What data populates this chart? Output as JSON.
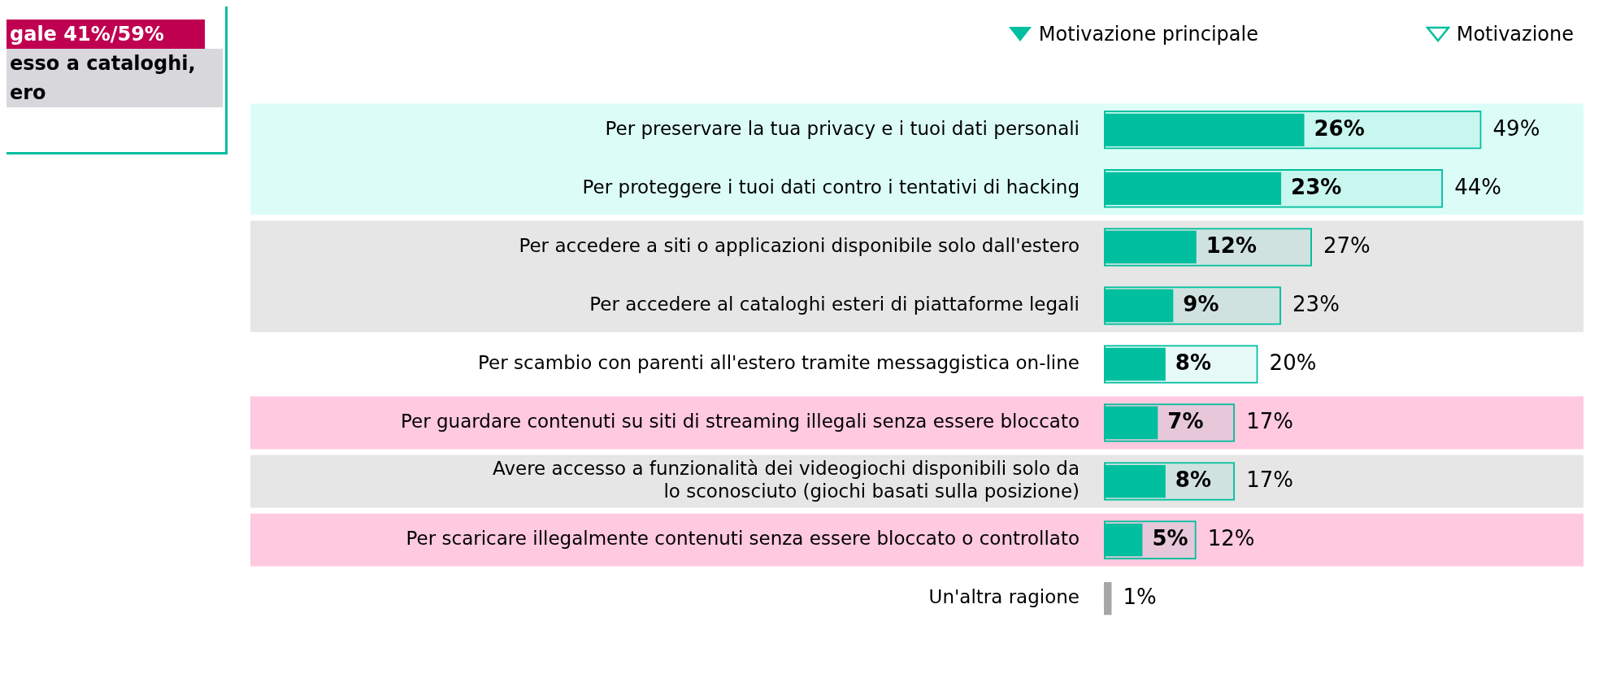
{
  "chart_data": {
    "type": "bar",
    "orientation": "horizontal",
    "legend": "top right",
    "categories": [
      "Per preservare la tua privacy e i tuoi dati personali",
      "Per proteggere i tuoi dati contro i tentativi di hacking",
      "Per accedere a siti o applicazioni disponibile solo dall'estero",
      "Per accedere al cataloghi esteri di piattaforme legali",
      "Per scambio con parenti all'estero tramite messaggistica on-line",
      "Per guardare contenuti su siti di streaming illegali senza essere bloccato",
      "Avere accesso a funzionalità dei videogiochi disponibili solo da\nlo sconosciuto (giochi basati sulla posizione)",
      "Per scaricare illegalmente contenuti senza essere bloccato o controllato",
      "Un'altra ragione"
    ],
    "series": [
      {
        "name": "Motivazione principale",
        "color": "#00bf9f",
        "colors": [
          "#00bf9f",
          "#00bf9f",
          "#00bf9f",
          "#00bf9f",
          "#00bf9f",
          "#00bf9f",
          "#00bf9f",
          "#00bf9f",
          "#a6a6a6"
        ],
        "values": [
          26,
          23,
          12,
          9,
          8,
          7,
          8,
          5,
          1
        ],
        "value_labels": [
          "26%",
          "23%",
          "12%",
          "9%",
          "8%",
          "7%",
          "8%",
          "5%",
          "1%"
        ]
      },
      {
        "name": "Motivazione",
        "color": "#00bf9f",
        "values": [
          49,
          44,
          27,
          23,
          20,
          17,
          17,
          12,
          null
        ],
        "value_labels": [
          "49%",
          "44%",
          "27%",
          "23%",
          "20%",
          "17%",
          "17%",
          "12%",
          null
        ]
      }
    ],
    "bands": [
      {
        "axis": "y",
        "from": "Per preservare la tua privacy e i tuoi dati personali",
        "to": "Per proteggere i tuoi dati contro i tentativi di hacking",
        "color": "#dcfdf7"
      },
      {
        "axis": "y",
        "from": "Per accedere a siti o applicazioni disponibile solo dall'estero",
        "to": "Per accedere al cataloghi esteri di piattaforme legali",
        "color": "#e6e6e6"
      },
      {
        "axis": "y",
        "from": "Per guardare contenuti su siti di streaming illegali senza essere bloccato",
        "to": "Per guardare contenuti su siti di streaming illegali senza essere bloccato",
        "color": "#ffc9e0"
      },
      {
        "axis": "y",
        "from": "Avere accesso a funzionalità dei videogiochi disponibili solo da\nlo sconosciuto (giochi basati sulla posizione)",
        "to": "Avere accesso a funzionalità dei videogiochi disponibili solo da\nlo sconosciuto (giochi basati sulla posizione)",
        "color": "#e6e6e6"
      },
      {
        "axis": "y",
        "from": "Per scaricare illegalmente contenuti senza essere bloccato o controllato",
        "to": "Per scaricare illegalmente contenuti senza essere bloccato o controllato",
        "color": "#ffc9e0"
      }
    ],
    "annotations": [
      "gale 41%/59%",
      "esso a cataloghi,",
      "ero"
    ]
  }
}
